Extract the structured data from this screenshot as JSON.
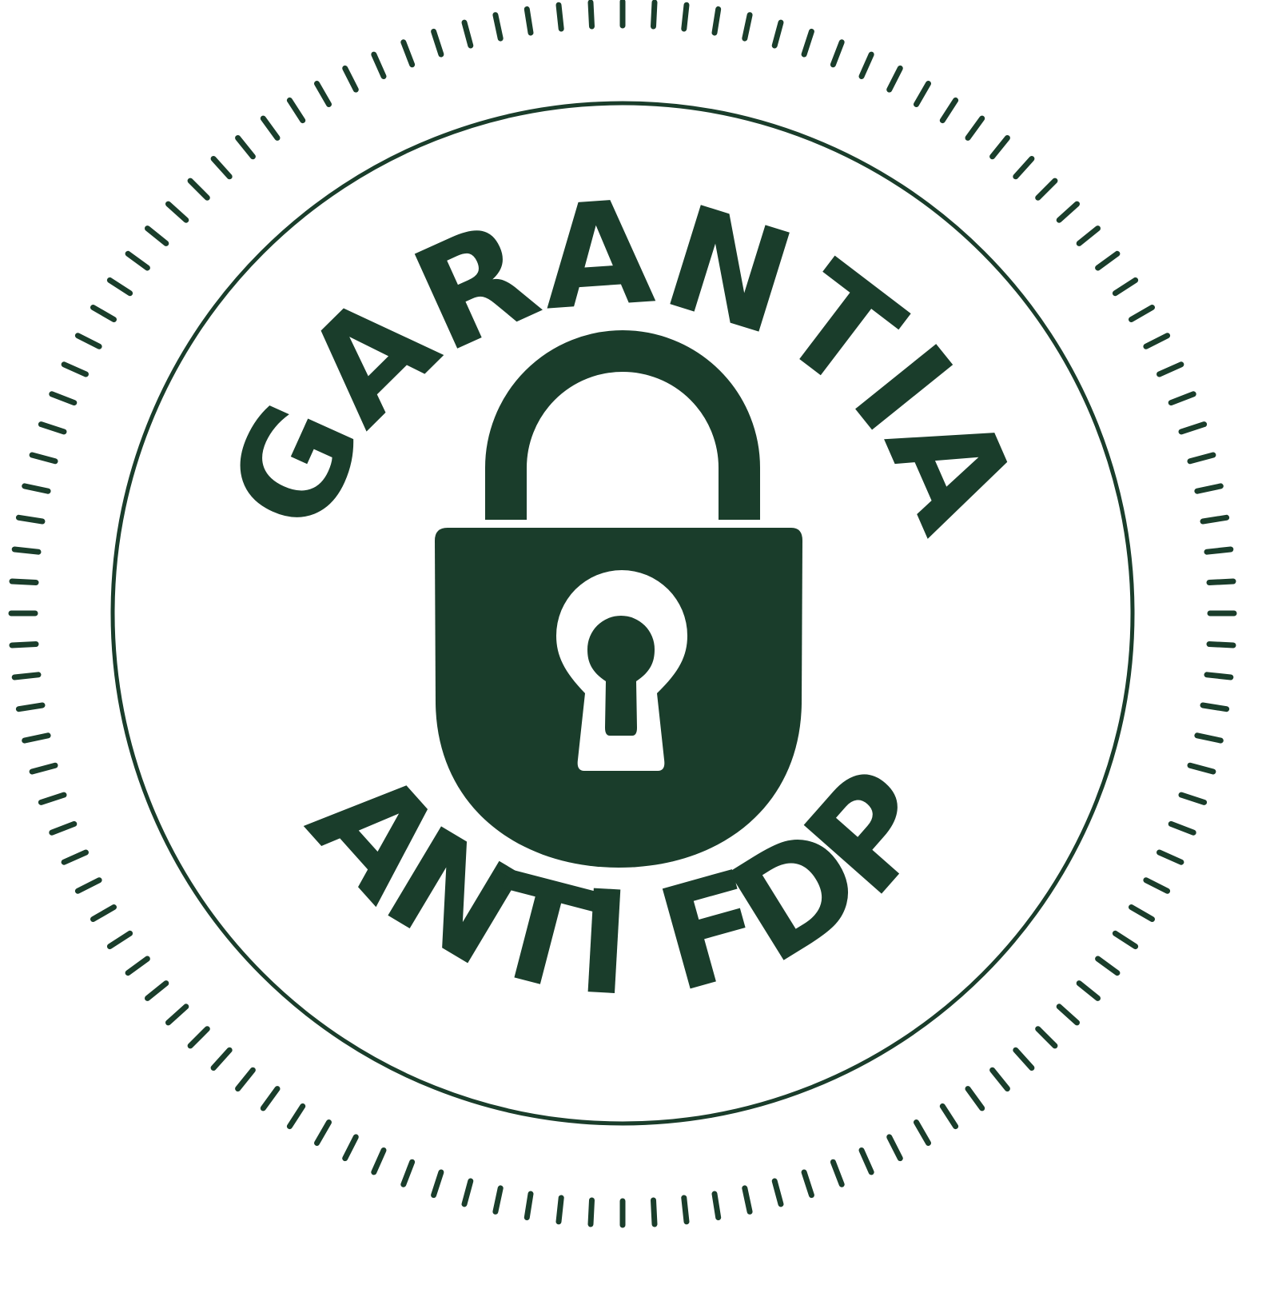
{
  "seal": {
    "top_text": "GARANTIA",
    "bottom_text": "ANTI FDP",
    "icon": "padlock-icon",
    "color": "#1a3d2b",
    "background": "#ffffff"
  }
}
